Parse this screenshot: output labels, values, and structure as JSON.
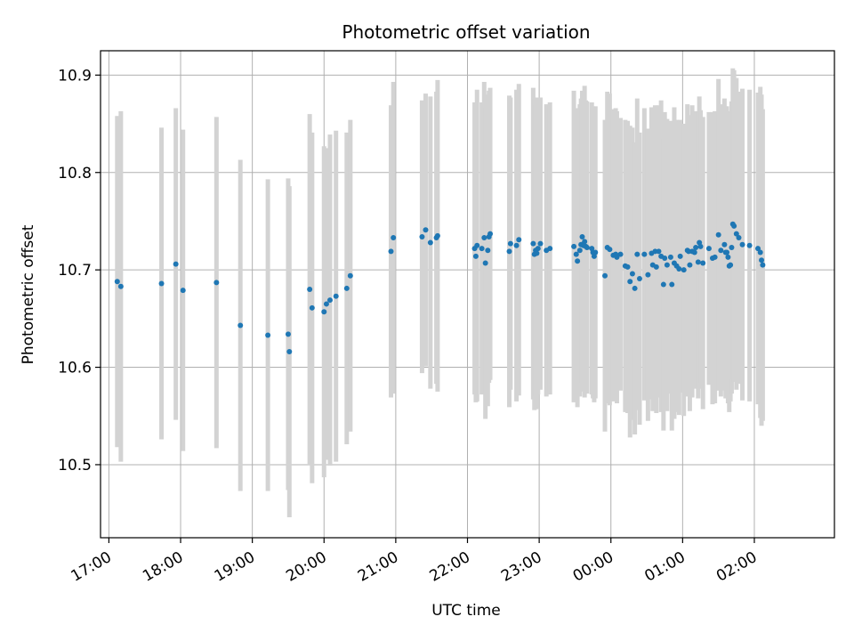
{
  "chart_data": {
    "type": "scatter",
    "title": "Photometric offset variation",
    "xlabel": "UTC time",
    "ylabel": "Photometric offset",
    "x_tick_labels": [
      "17:00",
      "18:00",
      "19:00",
      "20:00",
      "21:00",
      "22:00",
      "23:00",
      "00:00",
      "01:00",
      "02:00"
    ],
    "y_tick_labels": [
      "10.5",
      "10.6",
      "10.7",
      "10.8",
      "10.9"
    ],
    "y_ticks": [
      10.5,
      10.6,
      10.7,
      10.8,
      10.9
    ],
    "xlim": [
      "16:53",
      "03:07"
    ],
    "ylim": [
      10.425,
      10.925
    ],
    "grid": true,
    "colors": {
      "marker": "#1f77b4",
      "errorbar": "#d3d3d3"
    },
    "series": [
      {
        "x": [
          "17:07",
          "17:10",
          "17:44",
          "17:56",
          "18:02",
          "18:30",
          "18:50",
          "19:13",
          "19:30",
          "19:31",
          "19:48",
          "19:50",
          "20:00",
          "20:02",
          "20:05",
          "20:10",
          "20:19",
          "20:22",
          "20:56",
          "20:58",
          "21:22",
          "21:25",
          "21:29",
          "21:34",
          "21:35",
          "22:06",
          "22:07",
          "22:08",
          "22:12",
          "22:14",
          "22:15",
          "22:17",
          "22:18",
          "22:19",
          "22:35",
          "22:36",
          "22:41",
          "22:43",
          "22:55",
          "22:56",
          "22:57",
          "22:58",
          "22:59",
          "23:01",
          "23:06",
          "23:09",
          "23:29",
          "23:31",
          "23:32",
          "23:34",
          "23:35",
          "23:36",
          "23:37",
          "23:38",
          "23:39",
          "23:40",
          "23:44",
          "23:45",
          "23:46",
          "23:47",
          "23:55",
          "23:57",
          "23:59",
          "00:02",
          "00:04",
          "00:05",
          "00:08",
          "00:12",
          "00:14",
          "00:16",
          "00:18",
          "00:20",
          "00:22",
          "00:24",
          "00:28",
          "00:31",
          "00:34",
          "00:35",
          "00:37",
          "00:38",
          "00:40",
          "00:42",
          "00:44",
          "00:45",
          "00:47",
          "00:50",
          "00:51",
          "00:53",
          "00:55",
          "00:57",
          "00:58",
          "01:01",
          "01:04",
          "01:05",
          "01:06",
          "01:08",
          "01:10",
          "01:11",
          "01:13",
          "01:14",
          "01:15",
          "01:17",
          "01:22",
          "01:25",
          "01:27",
          "01:30",
          "01:32",
          "01:35",
          "01:36",
          "01:37",
          "01:38",
          "01:39",
          "01:40",
          "01:41",
          "01:42",
          "01:43",
          "01:45",
          "01:47",
          "01:50",
          "01:56",
          "02:03",
          "02:05",
          "02:06",
          "02:07"
        ],
        "y": [
          10.688,
          10.683,
          10.686,
          10.706,
          10.679,
          10.687,
          10.643,
          10.633,
          10.634,
          10.616,
          10.68,
          10.661,
          10.657,
          10.665,
          10.669,
          10.673,
          10.681,
          10.694,
          10.719,
          10.733,
          10.734,
          10.741,
          10.728,
          10.733,
          10.735,
          10.722,
          10.714,
          10.725,
          10.722,
          10.733,
          10.707,
          10.72,
          10.734,
          10.737,
          10.719,
          10.727,
          10.725,
          10.731,
          10.727,
          10.716,
          10.72,
          10.717,
          10.722,
          10.727,
          10.72,
          10.722,
          10.724,
          10.716,
          10.709,
          10.72,
          10.726,
          10.734,
          10.725,
          10.729,
          10.724,
          10.723,
          10.722,
          10.718,
          10.714,
          10.718,
          10.694,
          10.723,
          10.721,
          10.715,
          10.716,
          10.713,
          10.716,
          10.704,
          10.703,
          10.688,
          10.696,
          10.681,
          10.716,
          10.691,
          10.716,
          10.695,
          10.717,
          10.705,
          10.719,
          10.703,
          10.719,
          10.714,
          10.685,
          10.712,
          10.705,
          10.713,
          10.685,
          10.707,
          10.704,
          10.701,
          10.714,
          10.7,
          10.72,
          10.719,
          10.705,
          10.719,
          10.718,
          10.723,
          10.708,
          10.728,
          10.724,
          10.707,
          10.722,
          10.712,
          10.713,
          10.736,
          10.72,
          10.726,
          10.718,
          10.718,
          10.713,
          10.704,
          10.705,
          10.723,
          10.747,
          10.745,
          10.737,
          10.733,
          10.726,
          10.725,
          10.722,
          10.718,
          10.71,
          10.705
        ],
        "yerr": [
          0.17,
          0.18,
          0.16,
          0.16,
          0.165,
          0.17,
          0.17,
          0.16,
          0.16,
          0.17,
          0.18,
          0.18,
          0.17,
          0.16,
          0.17,
          0.17,
          0.16,
          0.16,
          0.15,
          0.16,
          0.14,
          0.14,
          0.15,
          0.15,
          0.16,
          0.15,
          0.15,
          0.16,
          0.15,
          0.16,
          0.16,
          0.16,
          0.15,
          0.15,
          0.16,
          0.15,
          0.16,
          0.16,
          0.16,
          0.16,
          0.15,
          0.16,
          0.15,
          0.15,
          0.15,
          0.15,
          0.16,
          0.15,
          0.15,
          0.15,
          0.15,
          0.15,
          0.15,
          0.16,
          0.15,
          0.15,
          0.15,
          0.15,
          0.15,
          0.15,
          0.16,
          0.16,
          0.16,
          0.15,
          0.15,
          0.15,
          0.14,
          0.15,
          0.15,
          0.16,
          0.15,
          0.15,
          0.16,
          0.15,
          0.15,
          0.15,
          0.15,
          0.15,
          0.15,
          0.15,
          0.15,
          0.16,
          0.15,
          0.15,
          0.15,
          0.14,
          0.15,
          0.16,
          0.15,
          0.15,
          0.14,
          0.15,
          0.15,
          0.14,
          0.15,
          0.15,
          0.14,
          0.14,
          0.14,
          0.15,
          0.14,
          0.15,
          0.14,
          0.15,
          0.15,
          0.16,
          0.15,
          0.15,
          0.15,
          0.15,
          0.15,
          0.15,
          0.14,
          0.15,
          0.16,
          0.16,
          0.16,
          0.15,
          0.16,
          0.16,
          0.16,
          0.17,
          0.17,
          0.16
        ]
      }
    ]
  }
}
